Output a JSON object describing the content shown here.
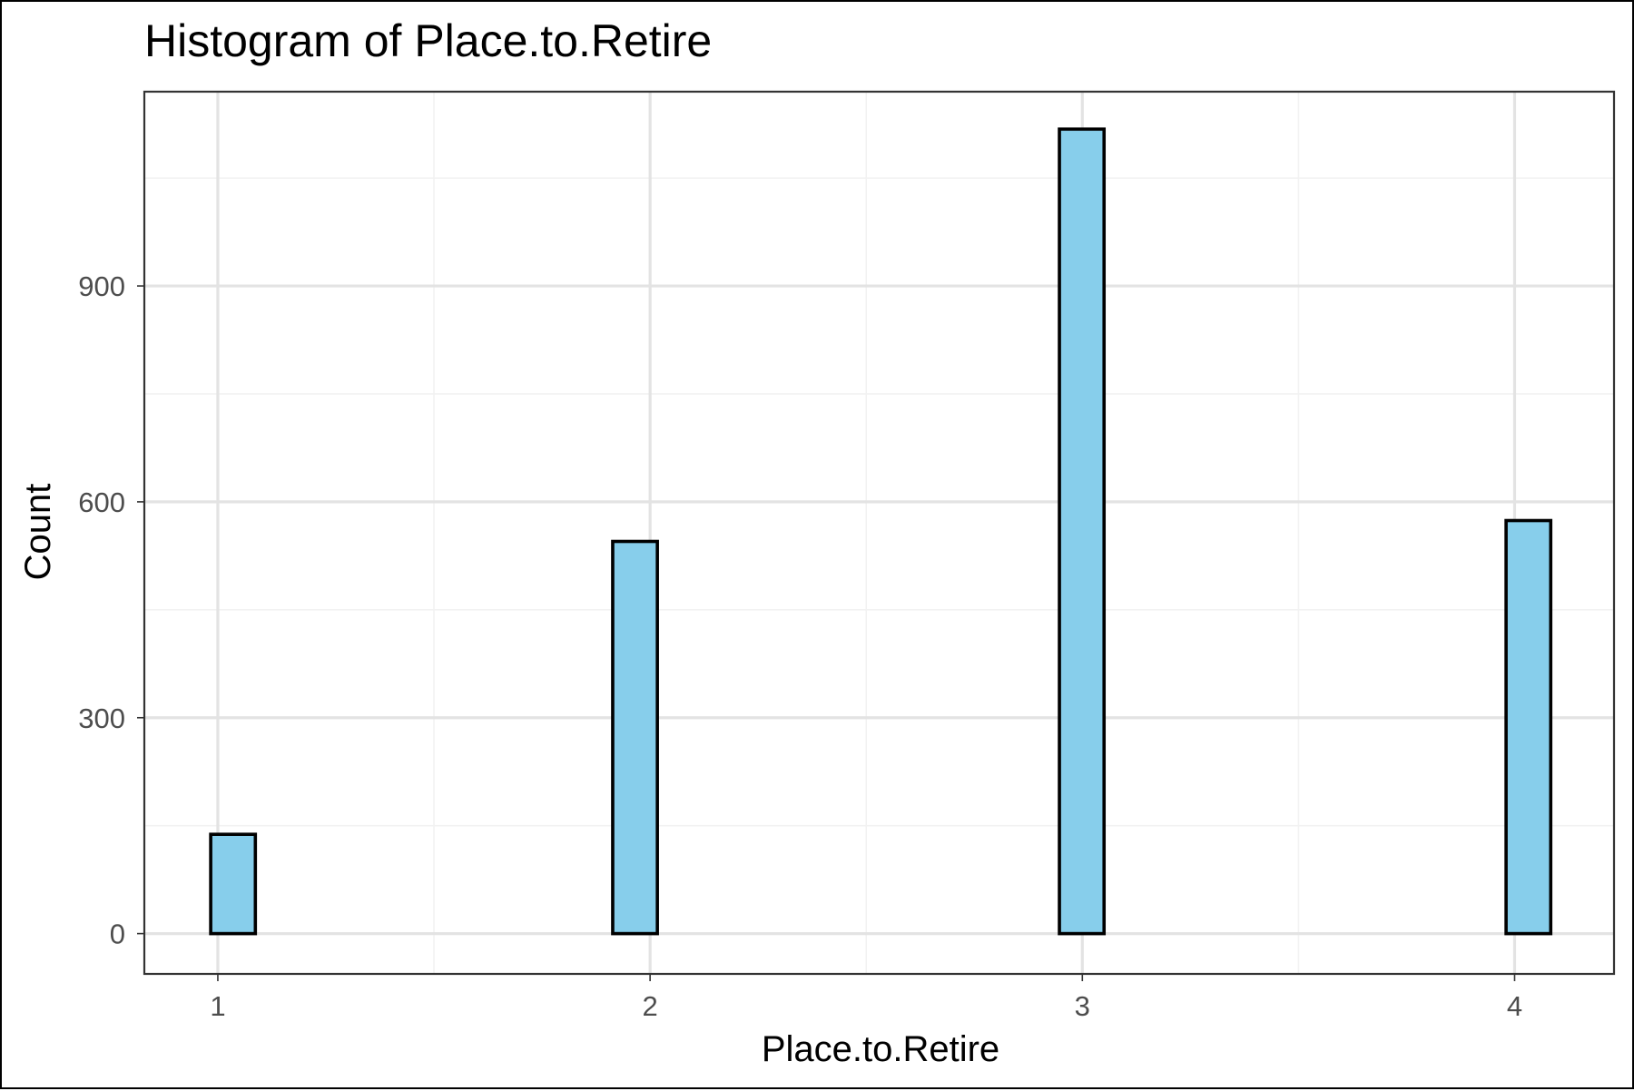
{
  "chart_data": {
    "type": "bar",
    "title": "Histogram of Place.to.Retire",
    "xlabel": "Place.to.Retire",
    "ylabel": "Count",
    "x_ticks": [
      "1",
      "2",
      "3",
      "4"
    ],
    "y_ticks": [
      "0",
      "300",
      "600",
      "900"
    ],
    "xlim": [
      0.83,
      4.23
    ],
    "ylim": [
      -56,
      1170
    ],
    "bin_width": 0.1033,
    "bins": [
      {
        "x": 1.0352,
        "value": 138
      },
      {
        "x": 1.1386,
        "value": 0
      },
      {
        "x": 1.2419,
        "value": 0
      },
      {
        "x": 1.3452,
        "value": 0
      },
      {
        "x": 1.4486,
        "value": 0
      },
      {
        "x": 1.5519,
        "value": 0
      },
      {
        "x": 1.6552,
        "value": 0
      },
      {
        "x": 1.7586,
        "value": 0
      },
      {
        "x": 1.8619,
        "value": 0
      },
      {
        "x": 1.9652,
        "value": 545
      },
      {
        "x": 2.0686,
        "value": 0
      },
      {
        "x": 2.1719,
        "value": 0
      },
      {
        "x": 2.2752,
        "value": 0
      },
      {
        "x": 2.3786,
        "value": 0
      },
      {
        "x": 2.4819,
        "value": 0
      },
      {
        "x": 2.5852,
        "value": 0
      },
      {
        "x": 2.6886,
        "value": 0
      },
      {
        "x": 2.7919,
        "value": 0
      },
      {
        "x": 2.8952,
        "value": 0
      },
      {
        "x": 2.9986,
        "value": 1118
      },
      {
        "x": 3.1019,
        "value": 0
      },
      {
        "x": 3.2052,
        "value": 0
      },
      {
        "x": 3.3086,
        "value": 0
      },
      {
        "x": 3.4119,
        "value": 0
      },
      {
        "x": 3.5152,
        "value": 0
      },
      {
        "x": 3.6186,
        "value": 0
      },
      {
        "x": 3.7219,
        "value": 0
      },
      {
        "x": 3.8252,
        "value": 0
      },
      {
        "x": 3.9286,
        "value": 0
      },
      {
        "x": 4.0319,
        "value": 574
      }
    ],
    "grid": true,
    "legend": "none",
    "bar_fill": "#87ceeb",
    "bar_outline": "#000000",
    "grid_color": "#e3e3e3",
    "tick_color": "#4d4d4d"
  }
}
